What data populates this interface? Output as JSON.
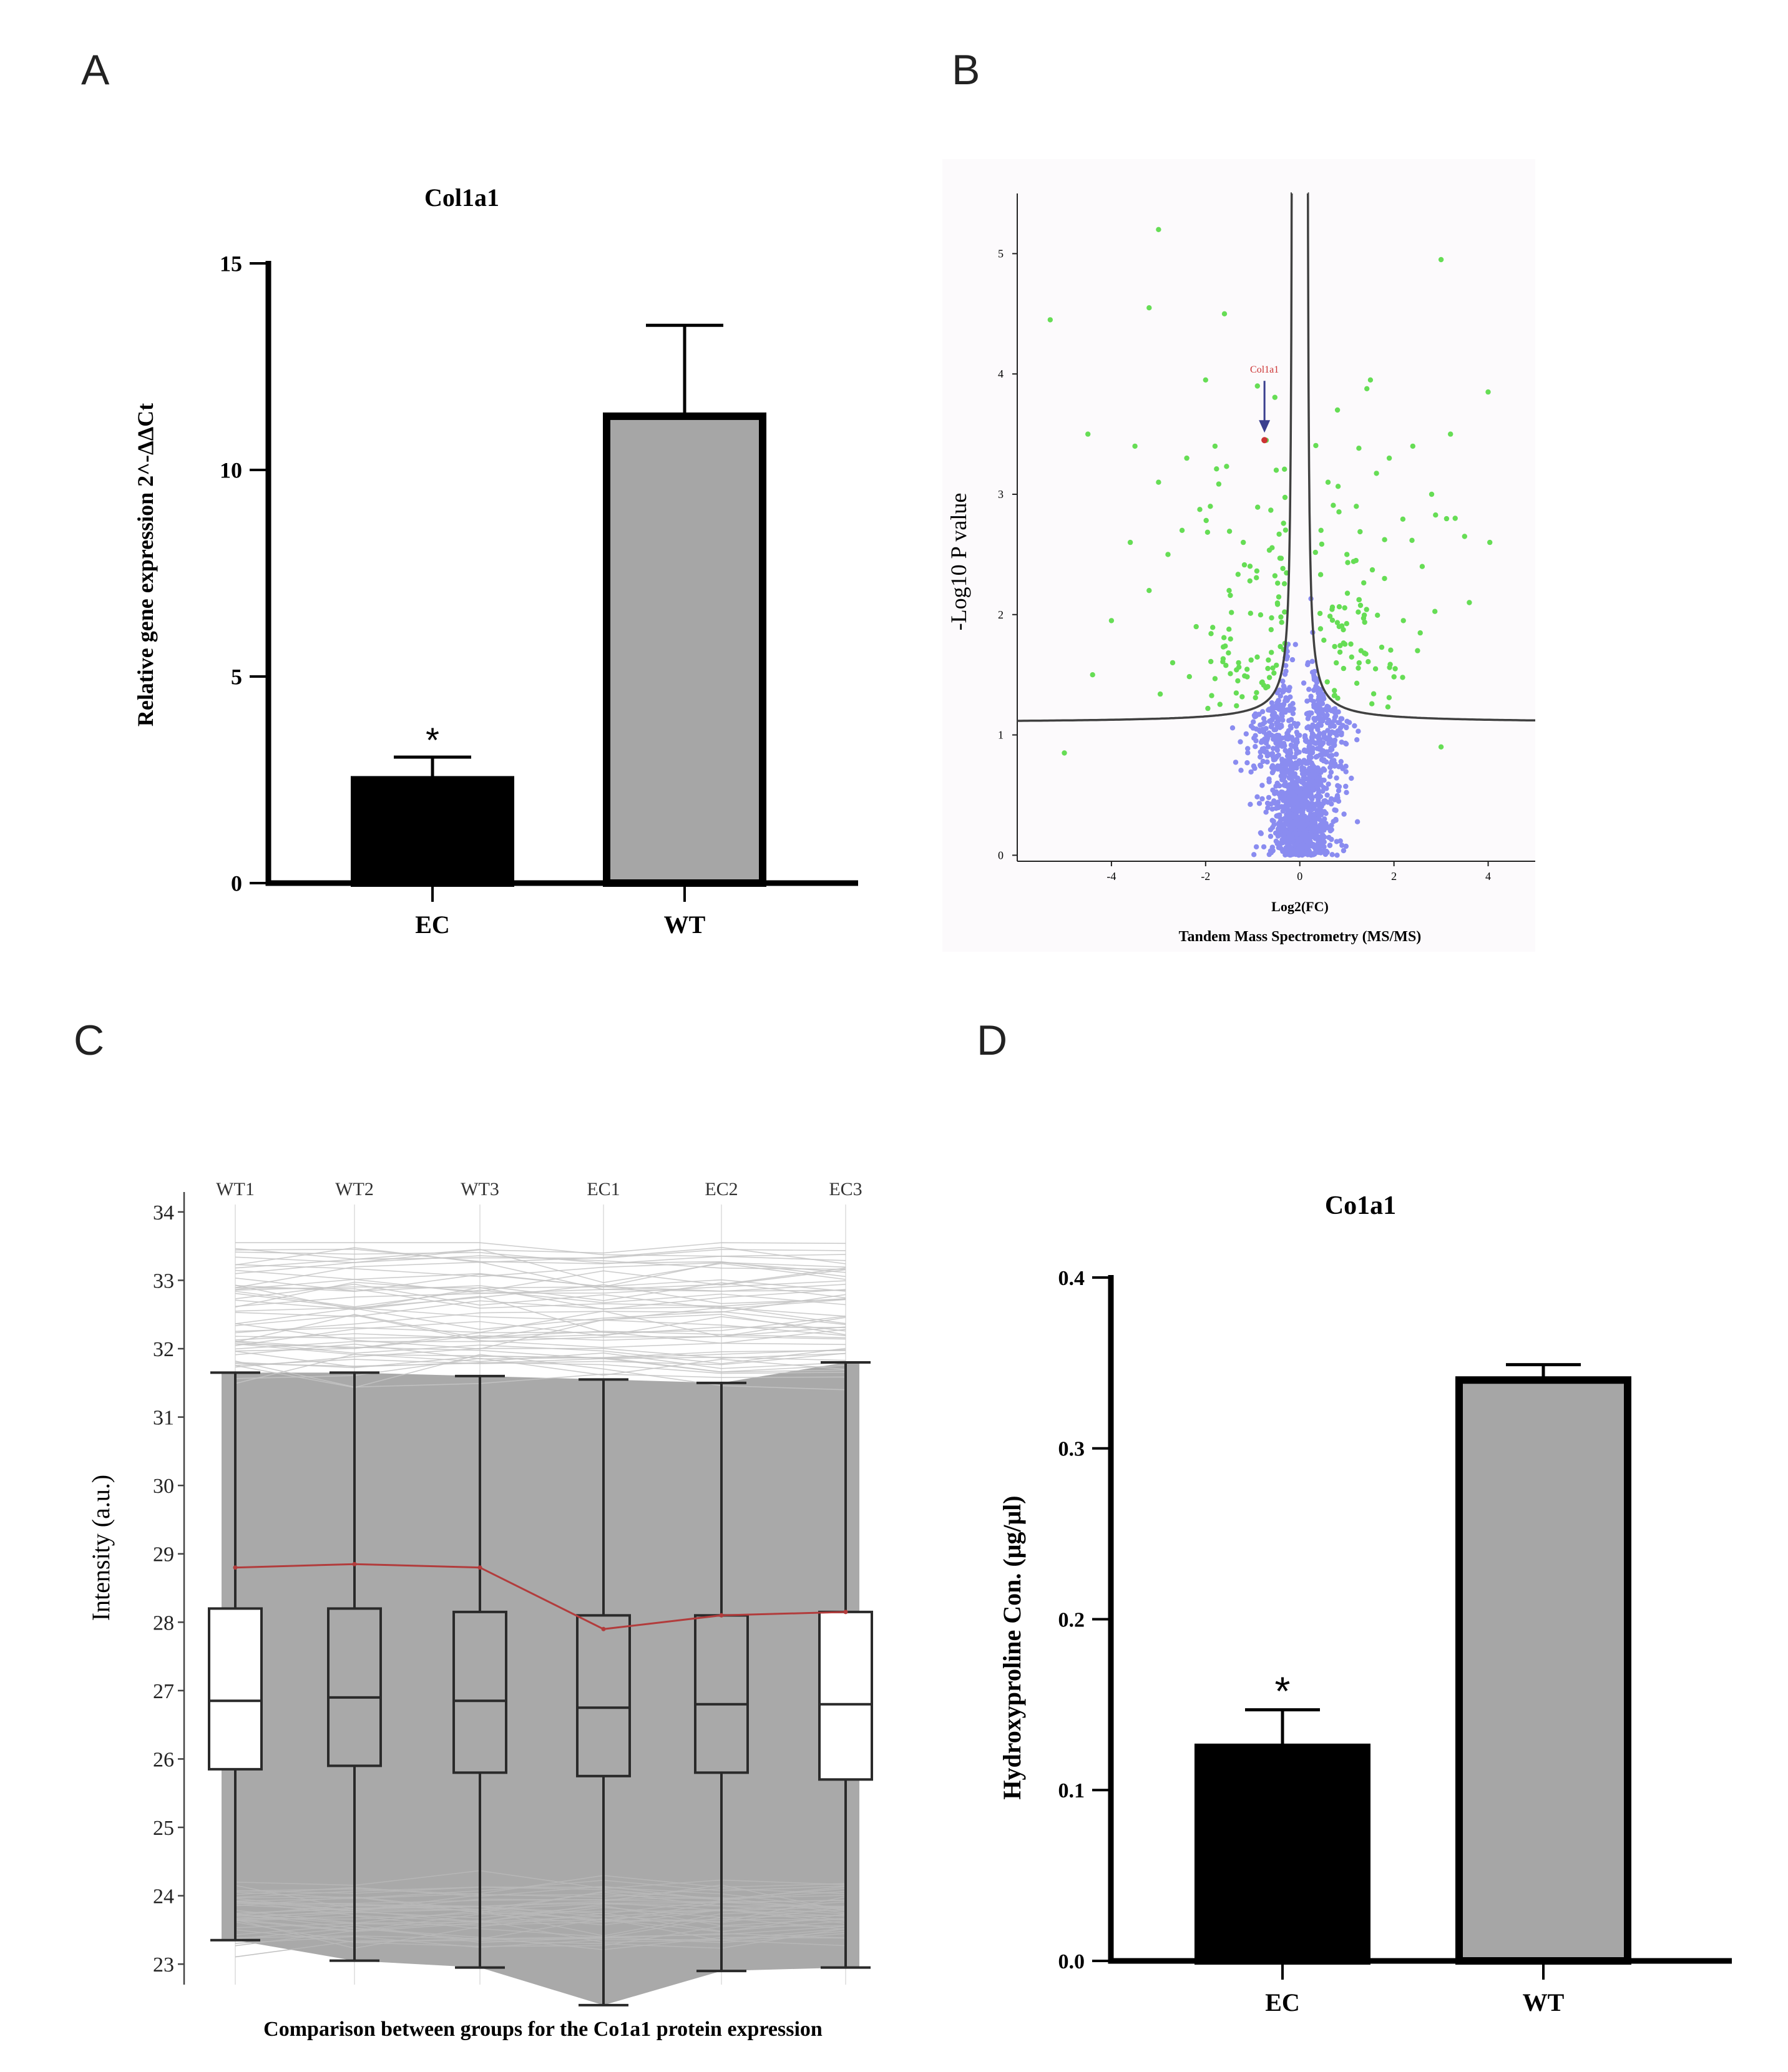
{
  "panels": [
    {
      "letter": "A"
    },
    {
      "letter": "B"
    },
    {
      "letter": "C"
    },
    {
      "letter": "D"
    }
  ],
  "chart_data": [
    {
      "panel": "A",
      "type": "bar",
      "title": "Col1a1",
      "xlabel": "",
      "ylabel": "Relative gene expression 2^-ΔΔCt",
      "categories": [
        "EC",
        "WT"
      ],
      "values": [
        2.5,
        11.3
      ],
      "errors": [
        0.55,
        2.2
      ],
      "colors": [
        "#000000",
        "#a6a6a6"
      ],
      "annotations": [
        "*",
        ""
      ],
      "ylim": [
        0,
        15
      ],
      "yticks": [
        0,
        5,
        10,
        15
      ],
      "ytick_labels": [
        "0",
        "5",
        "10",
        "15"
      ]
    },
    {
      "panel": "B",
      "type": "scatter",
      "title": "",
      "xlabel": "Log2(FC)",
      "subtitle": "Tandem Mass Spectrometry (MS/MS)",
      "ylabel": "-Log10  P  value",
      "xlim": [
        -6.0,
        5.0
      ],
      "ylim": [
        -0.05,
        5.5
      ],
      "xticks": [
        -4,
        -2,
        0,
        2,
        4
      ],
      "xtick_labels": [
        "-4",
        "-2",
        "0",
        "2",
        "4"
      ],
      "yticks": [
        0,
        1,
        2,
        3,
        4,
        5
      ],
      "ytick_labels": [
        "0",
        "1",
        "2",
        "3",
        "4",
        "5"
      ],
      "threshold_curve": {
        "x0": 0.15,
        "s0": 0.1,
        "c": 1.1,
        "color": "#404040"
      },
      "significant_color": "#66dd55",
      "nonsignificant_color": "#8a8cf0",
      "highlight": {
        "label": "Col1a1",
        "x": -0.75,
        "y": 3.45,
        "color": "#cc3333",
        "arrow_color": "#3a3f8f"
      },
      "significant_points": [
        [
          -3.0,
          5.2
        ],
        [
          3.0,
          4.95
        ],
        [
          -5.3,
          4.45
        ],
        [
          -3.2,
          4.55
        ],
        [
          -1.6,
          4.5
        ],
        [
          -2.0,
          3.95
        ],
        [
          1.5,
          3.95
        ],
        [
          4.0,
          3.85
        ],
        [
          -4.5,
          3.5
        ],
        [
          3.2,
          3.5
        ],
        [
          -3.5,
          3.4
        ],
        [
          -2.4,
          3.3
        ],
        [
          0.8,
          3.7
        ],
        [
          2.4,
          3.4
        ],
        [
          -1.9,
          2.9
        ],
        [
          1.2,
          2.9
        ],
        [
          3.5,
          2.65
        ],
        [
          -2.8,
          2.5
        ],
        [
          2.6,
          2.4
        ],
        [
          3.6,
          2.1
        ],
        [
          -4.0,
          1.95
        ],
        [
          -3.2,
          2.2
        ],
        [
          -4.4,
          1.5
        ],
        [
          -5.0,
          0.85
        ],
        [
          3.0,
          0.9
        ],
        [
          -2.5,
          2.7
        ],
        [
          -1.5,
          2.2
        ],
        [
          1.8,
          2.3
        ],
        [
          -2.2,
          1.9
        ],
        [
          2.2,
          1.95
        ],
        [
          -1.2,
          2.6
        ],
        [
          1.0,
          2.5
        ],
        [
          -3.0,
          3.1
        ],
        [
          2.8,
          3.0
        ],
        [
          -1.8,
          3.4
        ],
        [
          1.9,
          3.3
        ],
        [
          -0.9,
          3.9
        ],
        [
          0.6,
          3.1
        ],
        [
          -2.7,
          1.6
        ],
        [
          2.5,
          1.7
        ],
        [
          -1.3,
          1.6
        ],
        [
          1.3,
          1.7
        ],
        [
          -3.6,
          2.6
        ],
        [
          3.3,
          2.8
        ],
        [
          -0.5,
          3.2
        ],
        [
          0.45,
          2.7
        ]
      ],
      "point_counts": {
        "nonsignificant": 1400,
        "significant_extra": 170
      }
    },
    {
      "panel": "C",
      "type": "box",
      "title": "",
      "xlabel": "Comparison between groups for the Co1a1 protein expression",
      "ylabel": "Intensity  (a.u.)",
      "categories": [
        "WT1",
        "WT2",
        "WT3",
        "EC1",
        "EC2",
        "EC3"
      ],
      "boxes": [
        {
          "whisker_low": 23.35,
          "q1": 25.85,
          "median": 26.85,
          "q3": 28.2,
          "whisker_high": 31.65
        },
        {
          "whisker_low": 23.05,
          "q1": 25.9,
          "median": 26.9,
          "q3": 28.2,
          "whisker_high": 31.65
        },
        {
          "whisker_low": 22.95,
          "q1": 25.8,
          "median": 26.85,
          "q3": 28.15,
          "whisker_high": 31.6
        },
        {
          "whisker_low": 22.4,
          "q1": 25.75,
          "median": 26.75,
          "q3": 28.1,
          "whisker_high": 31.55
        },
        {
          "whisker_low": 22.9,
          "q1": 25.8,
          "median": 26.8,
          "q3": 28.1,
          "whisker_high": 31.5
        },
        {
          "whisker_low": 22.95,
          "q1": 25.7,
          "median": 26.8,
          "q3": 28.15,
          "whisker_high": 31.8
        }
      ],
      "highlight_series": {
        "name": "Co1a1",
        "values": [
          28.8,
          28.85,
          28.8,
          27.9,
          28.1,
          28.15
        ],
        "color": "#b23c3c"
      },
      "background_profile_count": 90,
      "background_range": [
        23.3,
        33.5
      ],
      "ylim": [
        22.7,
        34.2
      ],
      "yticks": [
        23,
        24,
        25,
        26,
        27,
        28,
        29,
        30,
        31,
        32,
        33,
        34
      ],
      "ytick_labels": [
        "23",
        "24",
        "25",
        "26",
        "27",
        "28",
        "29",
        "30",
        "31",
        "32",
        "33",
        "34"
      ]
    },
    {
      "panel": "D",
      "type": "bar",
      "title": "Co1a1",
      "xlabel": "",
      "ylabel": "Hydroxyproline  Con.  (μg/μl)",
      "categories": [
        "EC",
        "WT"
      ],
      "values": [
        0.125,
        0.34
      ],
      "errors": [
        0.022,
        0.009
      ],
      "colors": [
        "#000000",
        "#a6a6a6"
      ],
      "annotations": [
        "*",
        ""
      ],
      "ylim": [
        0,
        0.4
      ],
      "yticks": [
        0,
        0.1,
        0.2,
        0.3,
        0.4
      ],
      "ytick_labels": [
        "0.0",
        "0.1",
        "0.2",
        "0.3",
        "0.4"
      ]
    }
  ]
}
